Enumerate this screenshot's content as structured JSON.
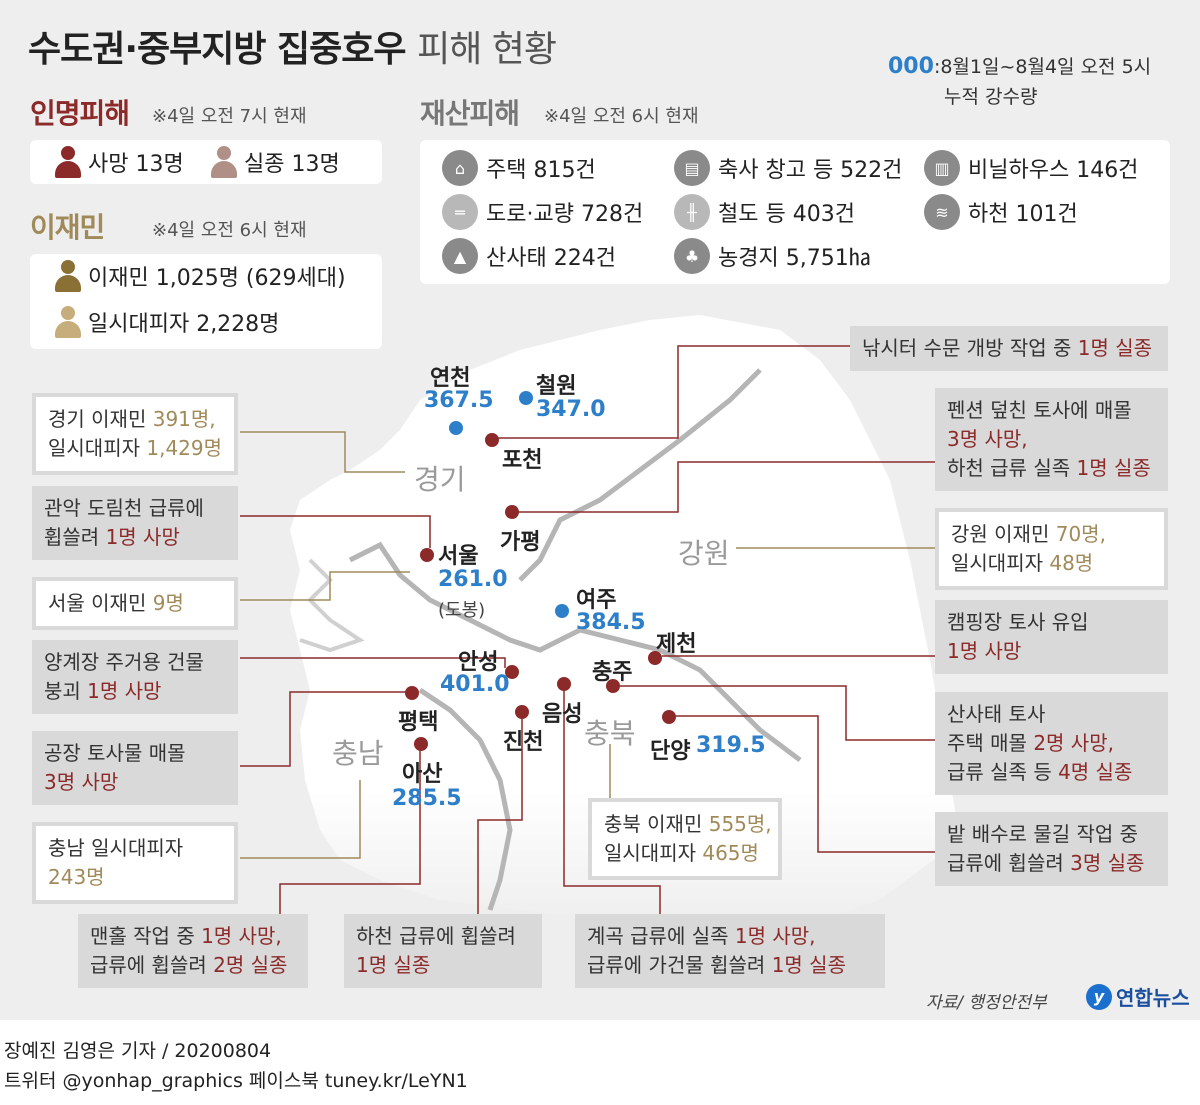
{
  "title": {
    "main": "수도권·중부지방 집중호우",
    "sub": "피해 현황"
  },
  "legend": {
    "code": "000",
    "line1": ":8월1일~8월4일 오전 5시",
    "line2": "누적 강수량"
  },
  "casualties": {
    "heading": "인명피해",
    "note": "※4일 오전 7시 현재",
    "dead": "사망 13명",
    "missing": "실종 13명"
  },
  "displaced": {
    "heading": "이재민",
    "note": "※4일 오전 6시 현재",
    "victims": "이재민 1,025명 (629세대)",
    "evacuees": "일시대피자 2,228명"
  },
  "property": {
    "heading": "재산피해",
    "note": "※4일 오전 6시 현재",
    "items": [
      {
        "icon": "house-icon",
        "label": "주택 815건"
      },
      {
        "icon": "barn-icon",
        "label": "축사 창고 등 522건"
      },
      {
        "icon": "greenhouse-icon",
        "label": "비닐하우스 146건"
      },
      {
        "icon": "road-icon",
        "label": "도로·교량 728건"
      },
      {
        "icon": "railway-icon",
        "label": "철도 등 403건"
      },
      {
        "icon": "river-icon",
        "label": "하천 101건"
      },
      {
        "icon": "landslide-icon",
        "label": "산사태 224건"
      },
      {
        "icon": "farmland-icon",
        "label": "농경지 5,751㏊"
      }
    ]
  },
  "regions": [
    "경기",
    "강원",
    "충북",
    "충남"
  ],
  "cities": {
    "yeoncheon": {
      "name": "연천",
      "value": "367.5"
    },
    "cheorwon": {
      "name": "철원",
      "value": "347.0"
    },
    "pocheon": {
      "name": "포천"
    },
    "gapyeong": {
      "name": "가평"
    },
    "seoul": {
      "name": "서울",
      "value": "261.0",
      "note": "(도봉)"
    },
    "yeoju": {
      "name": "여주",
      "value": "384.5"
    },
    "jecheon": {
      "name": "제천"
    },
    "anseong": {
      "name": "안성",
      "value": "401.0"
    },
    "chungju": {
      "name": "충주"
    },
    "eumseong": {
      "name": "음성"
    },
    "pyeongtaek": {
      "name": "평택"
    },
    "jincheon": {
      "name": "진천"
    },
    "danyang": {
      "name": "단양",
      "value": "319.5"
    },
    "asan": {
      "name": "아산",
      "value": "285.5"
    }
  },
  "callouts": {
    "gyeonggi": {
      "l1a": "경기 이재민 ",
      "l1b": "391명,",
      "l2a": "일시대피자 ",
      "l2b": "1,429명"
    },
    "gwanak": {
      "l1": "관악 도림천 급류에",
      "l2a": "휩쓸려 ",
      "l2b": "1명 사망"
    },
    "seoul": {
      "l1a": "서울 이재민 ",
      "l1b": "9명"
    },
    "yanggye": {
      "l1": "양계장 주거용 건물",
      "l2a": "붕괴 ",
      "l2b": "1명 사망"
    },
    "factory": {
      "l1": "공장 토사물 매몰",
      "l2": "3명 사망"
    },
    "chungnam": {
      "l1": "충남 일시대피자",
      "l2": "243명"
    },
    "fishing": {
      "l1a": "낚시터 수문 개방 작업 중 ",
      "l1b": "1명 실종"
    },
    "pension": {
      "l1": "펜션 덮친 토사에 매몰",
      "l2": "3명 사망,",
      "l3a": "하천 급류 실족 ",
      "l3b": "1명 실종"
    },
    "gangwon": {
      "l1a": "강원 이재민 ",
      "l1b": "70명,",
      "l2a": "일시대피자 ",
      "l2b": "48명"
    },
    "camping": {
      "l1": "캠핑장 토사 유입",
      "l2": "1명 사망"
    },
    "landslide": {
      "l1": "산사태 토사",
      "l2a": "주택 매몰 ",
      "l2b": "2명 사망,",
      "l3a": "급류 실족 등 ",
      "l3b": "4명 실종"
    },
    "drain": {
      "l1": "밭 배수로 물길 작업 중",
      "l2a": "급류에 휩쓸려 ",
      "l2b": "3명 실종"
    },
    "chungbuk": {
      "l1a": "충북 이재민 ",
      "l1b": "555명,",
      "l2a": "일시대피자 ",
      "l2b": "465명"
    },
    "manhole": {
      "l1a": "맨홀 작업 중 ",
      "l1b": "1명 사망,",
      "l2a": "급류에 휩쓸려 ",
      "l2b": "2명 실종"
    },
    "stream": {
      "l1": "하천 급류에 휩쓸려",
      "l2": "1명 실종"
    },
    "valley": {
      "l1a": "계곡 급류에 실족 ",
      "l1b": "1명 사망,",
      "l2a": "급류에 가건물 휩쓸려 ",
      "l2b": "1명 실종"
    }
  },
  "source": "자료/ 행정안전부",
  "logo": "연합뉴스",
  "footer": {
    "line1": "장예진 김영은 기자 / 20200804",
    "line2": "트위터 @yonhap_graphics  페이스북 tuney.kr/LeYN1"
  },
  "colors": {
    "death": "#8c2a2a",
    "evacuee": "#a08a5a",
    "rainfall": "#2d7fc9",
    "panel": "#eeeeee"
  }
}
